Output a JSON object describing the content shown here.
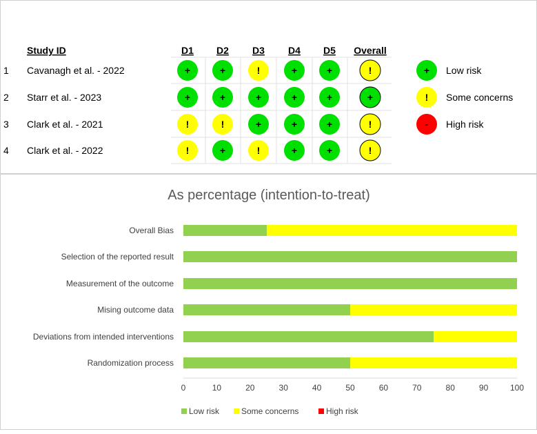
{
  "rob_table": {
    "headers": [
      "Study ID",
      "D1",
      "D2",
      "D3",
      "D4",
      "D5",
      "Overall"
    ],
    "rows": [
      {
        "num": "1",
        "study": "Cavanagh et al. - 2022",
        "judgements": [
          "low",
          "low",
          "some",
          "low",
          "low",
          "some"
        ]
      },
      {
        "num": "2",
        "study": "Starr et al. - 2023",
        "judgements": [
          "low",
          "low",
          "low",
          "low",
          "low",
          "low"
        ]
      },
      {
        "num": "3",
        "study": "Clark et al. - 2021",
        "judgements": [
          "some",
          "some",
          "low",
          "low",
          "low",
          "some"
        ]
      },
      {
        "num": "4",
        "study": "Clark et al. - 2022",
        "judgements": [
          "some",
          "low",
          "some",
          "low",
          "low",
          "some"
        ]
      }
    ],
    "legend": [
      {
        "key": "low",
        "symbol": "+",
        "label": "Low risk",
        "color": "#00e000"
      },
      {
        "key": "some",
        "symbol": "!",
        "label": "Some concerns",
        "color": "#ffff00"
      },
      {
        "key": "high",
        "symbol": "-",
        "label": "High risk",
        "color": "#ff0000"
      }
    ]
  },
  "chart_data": {
    "type": "bar",
    "orientation": "horizontal",
    "stacked": true,
    "title": "As percentage (intention-to-treat)",
    "categories": [
      "Overall Bias",
      "Selection of the reported result",
      "Measurement of the outcome",
      "Mising outcome data",
      "Deviations from intended interventions",
      "Randomization process"
    ],
    "series": [
      {
        "name": "Low risk",
        "color": "#92d050",
        "values": [
          25,
          100,
          100,
          50,
          75,
          50
        ]
      },
      {
        "name": "Some concerns",
        "color": "#ffff00",
        "values": [
          75,
          0,
          0,
          50,
          25,
          50
        ]
      },
      {
        "name": "High risk",
        "color": "#ff0000",
        "values": [
          0,
          0,
          0,
          0,
          0,
          0
        ]
      }
    ],
    "xlim": [
      0,
      100
    ],
    "xticks": [
      0,
      10,
      20,
      30,
      40,
      50,
      60,
      70,
      80,
      90,
      100
    ],
    "grid": false,
    "legend_position": "bottom"
  }
}
